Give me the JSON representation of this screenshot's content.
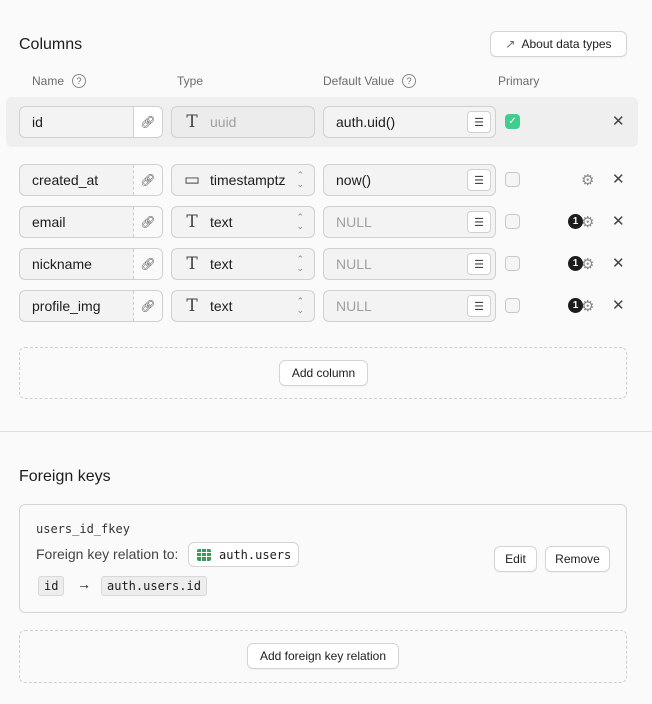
{
  "columns": {
    "title": "Columns",
    "about_button": "About data types",
    "headers": {
      "name": "Name",
      "type": "Type",
      "default": "Default Value",
      "primary": "Primary"
    },
    "help_glyph": "?",
    "rows": [
      {
        "name": "id",
        "type": "uuid",
        "type_icon": "text-T-icon",
        "default": "auth.uid()",
        "default_is_placeholder": false,
        "primary": true,
        "badge": null,
        "settings": false
      },
      {
        "name": "created_at",
        "type": "timestamptz",
        "type_icon": "calendar-icon",
        "default": "now()",
        "default_is_placeholder": false,
        "primary": false,
        "badge": null,
        "settings": true
      },
      {
        "name": "email",
        "type": "text",
        "type_icon": "text-T-icon",
        "default": "NULL",
        "default_is_placeholder": true,
        "primary": false,
        "badge": "1",
        "settings": true
      },
      {
        "name": "nickname",
        "type": "text",
        "type_icon": "text-T-icon",
        "default": "NULL",
        "default_is_placeholder": true,
        "primary": false,
        "badge": "1",
        "settings": true
      },
      {
        "name": "profile_img",
        "type": "text",
        "type_icon": "text-T-icon",
        "default": "NULL",
        "default_is_placeholder": true,
        "primary": false,
        "badge": "1",
        "settings": true
      }
    ],
    "add_column": "Add column"
  },
  "foreign_keys": {
    "title": "Foreign keys",
    "key_name": "users_id_fkey",
    "relation_label": "Foreign key relation to:",
    "relation_table": "auth.users",
    "source_column": "id",
    "target_column": "auth.users.id",
    "edit": "Edit",
    "remove": "Remove",
    "add": "Add foreign key relation"
  },
  "colors": {
    "accent": "#3ecf8e",
    "table_icon": "#3a9a5b"
  }
}
